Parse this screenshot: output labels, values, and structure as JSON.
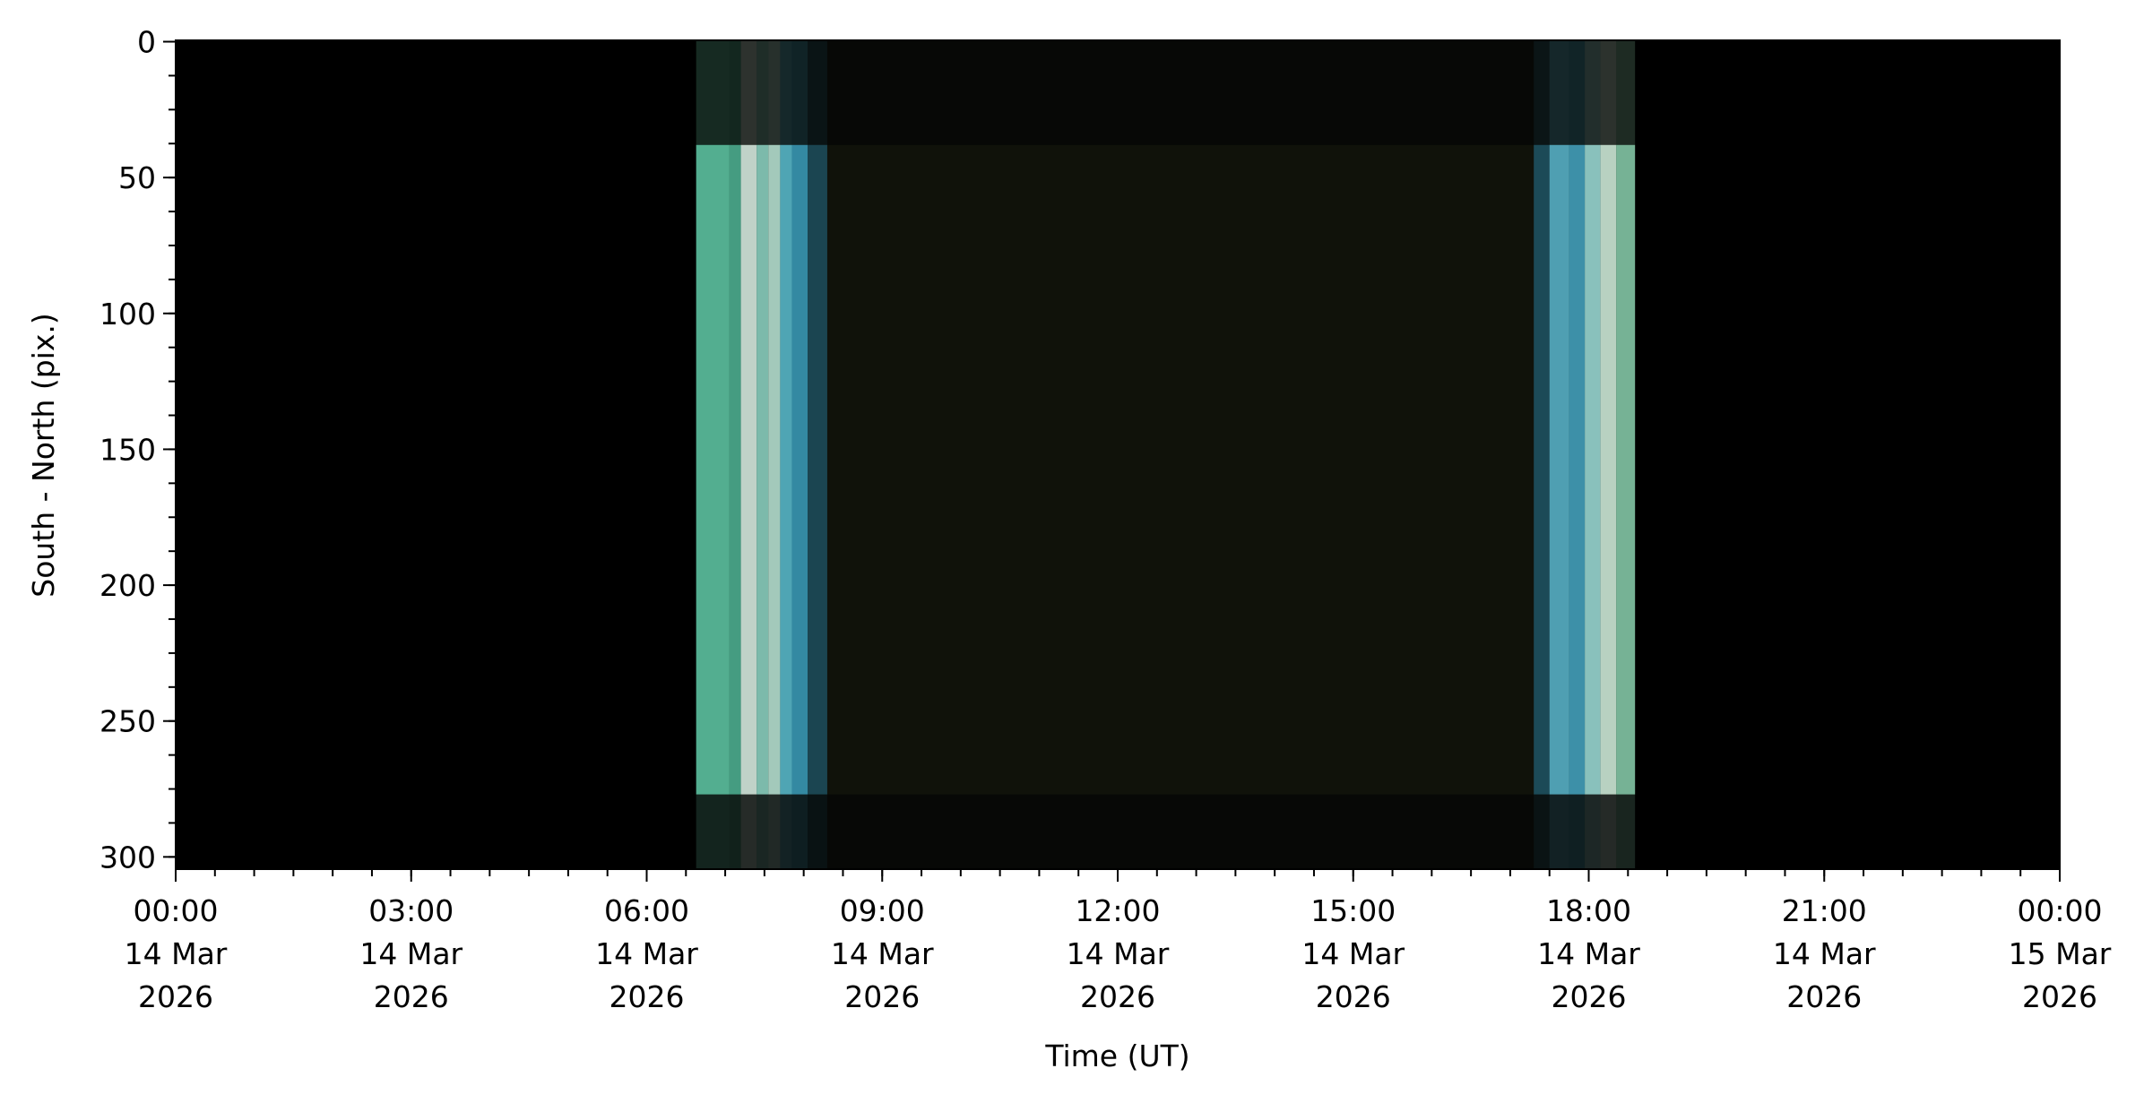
{
  "chart_data": {
    "type": "heatmap",
    "title": "",
    "xlabel": "Time (UT)",
    "ylabel": "South - North (pix.)",
    "xlim": [
      "2026-03-14T00:00",
      "2026-03-15T00:00"
    ],
    "ylim": [
      305,
      0
    ],
    "y_inverted": true,
    "grid": false,
    "x_ticks": [
      {
        "hour": 0,
        "lines": [
          "00:00",
          "14 Mar",
          "2026"
        ]
      },
      {
        "hour": 3,
        "lines": [
          "03:00",
          "14 Mar",
          "2026"
        ]
      },
      {
        "hour": 6,
        "lines": [
          "06:00",
          "14 Mar",
          "2026"
        ]
      },
      {
        "hour": 9,
        "lines": [
          "09:00",
          "14 Mar",
          "2026"
        ]
      },
      {
        "hour": 12,
        "lines": [
          "12:00",
          "14 Mar",
          "2026"
        ]
      },
      {
        "hour": 15,
        "lines": [
          "15:00",
          "14 Mar",
          "2026"
        ]
      },
      {
        "hour": 18,
        "lines": [
          "18:00",
          "14 Mar",
          "2026"
        ]
      },
      {
        "hour": 21,
        "lines": [
          "21:00",
          "14 Mar",
          "2026"
        ]
      },
      {
        "hour": 24,
        "lines": [
          "00:00",
          "15 Mar",
          "2026"
        ]
      }
    ],
    "x_minor_step_hours": 0.5,
    "y_ticks": [
      0,
      50,
      100,
      150,
      200,
      250,
      300
    ],
    "y_minor_step": 12.5,
    "data_coverage_hours": [
      6.63,
      18.59
    ],
    "sky_rows": [
      38,
      277
    ],
    "colors": {
      "background": "#000000",
      "night_sky": "#10120a",
      "edge_rows": "#070806",
      "twilight": [
        "#6fd3b0",
        "#9fe8d0",
        "#d8f4e8",
        "#5cc4d6",
        "#3a9db8",
        "#2a6f86"
      ]
    },
    "twilight_stripes": [
      {
        "start": 6.63,
        "end": 7.05,
        "color": "#5fcaa8"
      },
      {
        "start": 7.05,
        "end": 7.2,
        "color": "#4fb596"
      },
      {
        "start": 7.2,
        "end": 7.4,
        "color": "#dff5ea"
      },
      {
        "start": 7.4,
        "end": 7.55,
        "color": "#8fd8c8"
      },
      {
        "start": 7.55,
        "end": 7.7,
        "color": "#bdeadb"
      },
      {
        "start": 7.7,
        "end": 7.85,
        "color": "#5bbfd2"
      },
      {
        "start": 7.85,
        "end": 8.05,
        "color": "#3b9fbd"
      },
      {
        "start": 8.05,
        "end": 8.3,
        "color": "#1d4f5e"
      },
      {
        "start": 17.3,
        "end": 17.5,
        "color": "#1f5565"
      },
      {
        "start": 17.5,
        "end": 17.75,
        "color": "#5ab8d0"
      },
      {
        "start": 17.75,
        "end": 17.95,
        "color": "#45a7c4"
      },
      {
        "start": 17.95,
        "end": 18.15,
        "color": "#9fe0dc"
      },
      {
        "start": 18.15,
        "end": 18.35,
        "color": "#d6f3e2"
      },
      {
        "start": 18.35,
        "end": 18.59,
        "color": "#88cfae"
      }
    ]
  }
}
